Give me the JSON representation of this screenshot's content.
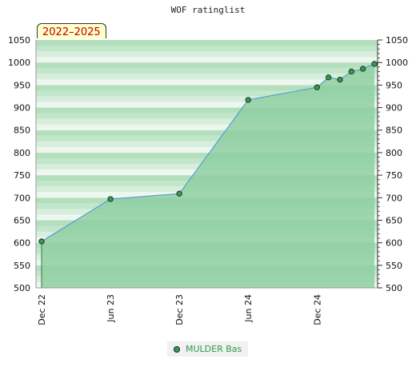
{
  "title": "WOF ratinglist",
  "range_badge": "2022–2025",
  "colors": {
    "band_light_1": "#eef7ef",
    "band_light_2": "#d6eedb",
    "band_light_3": "#c2e6ca",
    "band_light_4": "#b3dfbc",
    "fill_area": "#8fcfa2",
    "fill_area_dark": "#7cc494",
    "line": "#5b9bd5",
    "marker": "#339955"
  },
  "chart_data": {
    "type": "area",
    "title": "WOF ratinglist",
    "xlabel": "",
    "ylabel": "",
    "ylim": [
      500,
      1050
    ],
    "y_ticks": [
      500,
      550,
      600,
      650,
      700,
      750,
      800,
      850,
      900,
      950,
      1000,
      1050
    ],
    "x_ticks": [
      "Dec 22",
      "Jun 23",
      "Dec 23",
      "Jun 24",
      "Dec 24"
    ],
    "series": [
      {
        "name": "MULDER Bas",
        "x": [
          "2022-12",
          "2023-06",
          "2023-12",
          "2024-06",
          "2024-12",
          "2025-01",
          "2025-02",
          "2025-03",
          "2025-04",
          "2025-05"
        ],
        "values": [
          603,
          697,
          709,
          917,
          945,
          967,
          962,
          980,
          986,
          997
        ]
      }
    ],
    "legend_position": "bottom-center",
    "grid": true
  },
  "legend": {
    "label": "MULDER Bas"
  }
}
